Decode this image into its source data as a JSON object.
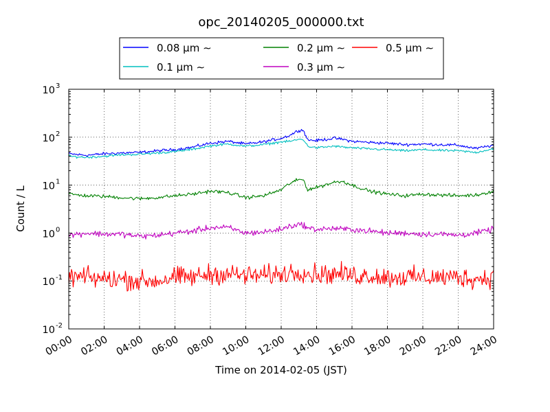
{
  "chart_data": {
    "type": "line",
    "title": "opc_20140205_000000.txt",
    "xlabel": "Time on 2014-02-05 (JST)",
    "ylabel": "Count / L",
    "yscale": "log",
    "ylim": [
      0.01,
      1000
    ],
    "xlim": [
      "00:00",
      "24:00"
    ],
    "grid": true,
    "legend_placement": "top-center",
    "x_tick_labels": [
      "00:00",
      "02:00",
      "04:00",
      "06:00",
      "08:00",
      "10:00",
      "12:00",
      "14:00",
      "16:00",
      "18:00",
      "20:00",
      "22:00",
      "24:00"
    ],
    "y_ticks": [
      {
        "base": "10",
        "exp": "-2"
      },
      {
        "base": "10",
        "exp": "-1"
      },
      {
        "base": "10",
        "exp": "0"
      },
      {
        "base": "10",
        "exp": "1"
      },
      {
        "base": "10",
        "exp": "2"
      },
      {
        "base": "10",
        "exp": "3"
      }
    ],
    "x_hours": [
      0,
      1,
      2,
      3,
      4,
      5,
      6,
      7,
      8,
      9,
      10,
      11,
      12,
      12.5,
      13,
      13.25,
      13.5,
      14,
      15,
      15.5,
      16,
      17,
      18,
      19,
      20,
      21,
      22,
      23,
      24
    ],
    "series": [
      {
        "name": "0.08 μm ∼",
        "color": "#0000ff",
        "noise": 0.05,
        "values": [
          45,
          42,
          45,
          47,
          48,
          52,
          55,
          62,
          75,
          82,
          72,
          80,
          95,
          110,
          140,
          140,
          88,
          85,
          95,
          90,
          82,
          78,
          75,
          70,
          72,
          70,
          68,
          58,
          68
        ]
      },
      {
        "name": "0.1 μm ∼",
        "color": "#00bfbf",
        "noise": 0.04,
        "values": [
          40,
          38,
          40,
          43,
          44,
          47,
          50,
          56,
          66,
          72,
          65,
          70,
          80,
          82,
          90,
          90,
          65,
          60,
          65,
          62,
          60,
          57,
          55,
          52,
          55,
          53,
          52,
          48,
          58
        ]
      },
      {
        "name": "0.2 μm ∼",
        "color": "#008000",
        "noise": 0.06,
        "values": [
          6.5,
          6.0,
          5.8,
          5.5,
          5.2,
          5.5,
          6.0,
          6.5,
          7.5,
          7.0,
          5.5,
          6.0,
          8.0,
          11,
          13,
          13,
          8.0,
          9.0,
          11.5,
          12,
          10,
          7.5,
          6.5,
          6.0,
          6.5,
          6.2,
          6.0,
          6.2,
          7.5
        ]
      },
      {
        "name": "0.3 μm ∼",
        "color": "#bf00bf",
        "noise": 0.1,
        "values": [
          0.9,
          1.0,
          0.95,
          0.95,
          0.85,
          0.9,
          1.0,
          1.1,
          1.3,
          1.3,
          1.0,
          1.05,
          1.2,
          1.4,
          1.5,
          1.5,
          1.25,
          1.2,
          1.25,
          1.2,
          1.2,
          1.1,
          1.0,
          1.0,
          0.95,
          0.95,
          0.9,
          1.0,
          1.2
        ]
      },
      {
        "name": "0.5 μm ∼",
        "color": "#ff0000",
        "noise": 0.34,
        "values": [
          0.12,
          0.12,
          0.11,
          0.11,
          0.1,
          0.1,
          0.12,
          0.12,
          0.14,
          0.14,
          0.13,
          0.13,
          0.14,
          0.15,
          0.16,
          0.16,
          0.14,
          0.14,
          0.14,
          0.14,
          0.13,
          0.13,
          0.12,
          0.12,
          0.12,
          0.12,
          0.12,
          0.11,
          0.12
        ]
      }
    ]
  }
}
